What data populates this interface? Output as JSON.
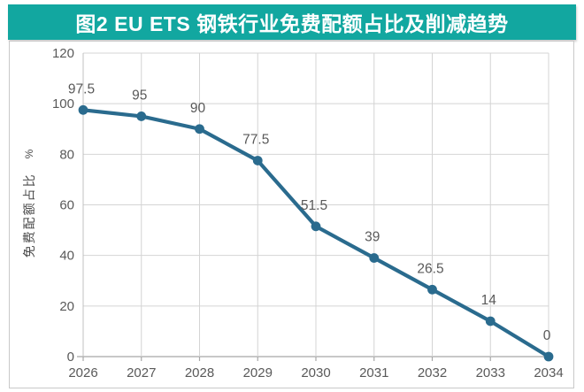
{
  "title": "图2 EU ETS 钢铁行业免费配额占比及削减趋势",
  "colors": {
    "title_bar_bg": "#12a7a0",
    "title_text": "#ffffff",
    "line": "#2a6b8e",
    "marker": "#2a6b8e",
    "grid": "#d4d4d4",
    "axis": "#a8a8a8",
    "tick_text": "#595959",
    "data_label_text": "#595959",
    "chart_border": "#c9c9c9"
  },
  "y_axis": {
    "title": "免费配额占比",
    "unit": "%"
  },
  "chart_data": {
    "type": "line",
    "title": "图2 EU ETS 钢铁行业免费配额占比及削减趋势",
    "categories": [
      "2026",
      "2027",
      "2028",
      "2029",
      "2030",
      "2031",
      "2032",
      "2033",
      "2034"
    ],
    "series": [
      {
        "name": "免费配额占比",
        "values": [
          97.5,
          95,
          90,
          77.5,
          51.5,
          39,
          26.5,
          14,
          0
        ]
      }
    ],
    "data_labels": [
      "97.5",
      "95",
      "90",
      "77.5",
      "51.5",
      "39",
      "26.5",
      "14",
      "0"
    ],
    "xlabel": "",
    "ylabel": "免费配额占比 %",
    "ylim": [
      0,
      120
    ],
    "y_ticks": [
      0,
      20,
      40,
      60,
      80,
      100,
      120
    ],
    "grid": true,
    "legend_position": "none"
  }
}
